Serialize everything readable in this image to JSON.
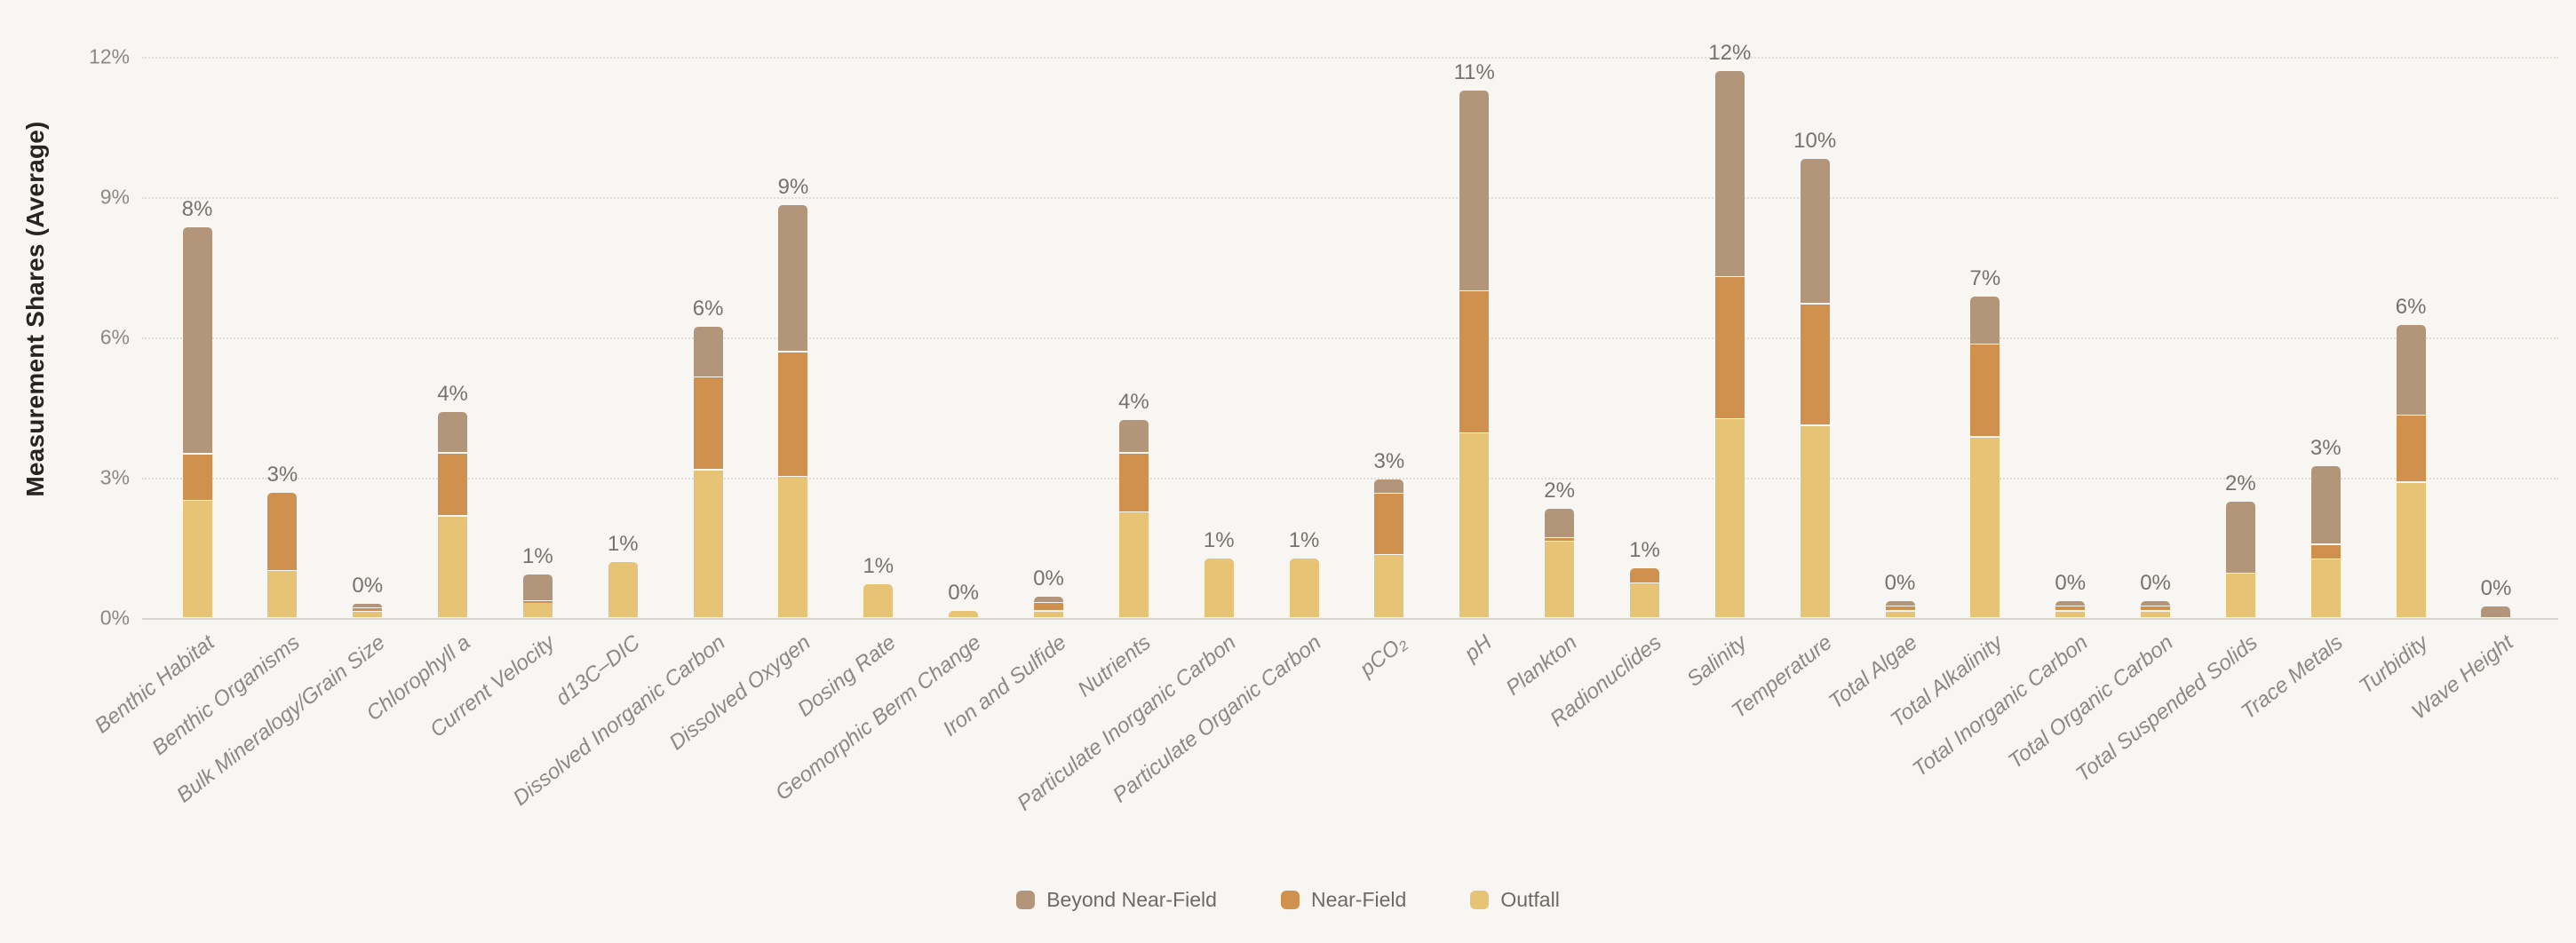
{
  "y_axis": {
    "title": "Measurement Shares (Average)",
    "tick_labels": [
      "0%",
      "3%",
      "6%",
      "9%",
      "12%"
    ]
  },
  "legend": {
    "items": [
      {
        "label": "Beyond Near-Field",
        "color": "#b39679"
      },
      {
        "label": "Near-Field",
        "color": "#d0914f"
      },
      {
        "label": "Outfall",
        "color": "#e7c376"
      }
    ]
  },
  "chart_data": {
    "type": "bar",
    "stacked": true,
    "title": "",
    "xlabel": "",
    "ylabel": "Measurement Shares (Average)",
    "ylim": [
      0,
      12.6
    ],
    "yticks_pct": [
      0,
      3,
      6,
      9,
      12
    ],
    "grid": "horizontal-dotted",
    "legend_position": "bottom-center",
    "categories": [
      "Benthic Habitat",
      "Benthic Organisms",
      "Bulk Mineralogy/Grain Size",
      "Chlorophyll a",
      "Current Velocity",
      "d13C–DIC",
      "Dissolved Inorganic Carbon",
      "Dissolved Oxygen",
      "Dosing Rate",
      "Geomorphic Berm Change",
      "Iron and Sulfide",
      "Nutrients",
      "Particulate Inorganic Carbon",
      "Particulate Organic Carbon",
      "pCO₂",
      "pH",
      "Plankton",
      "Radionuclides",
      "Salinity",
      "Temperature",
      "Total Algae",
      "Total Alkalinity",
      "Total Inorganic Carbon",
      "Total Organic Carbon",
      "Total Suspended Solids",
      "Trace Metals",
      "Turbidity",
      "Wave Height"
    ],
    "series": [
      {
        "name": "Outfall",
        "color": "#e7c376",
        "values": [
          2.5,
          1.0,
          0.13,
          2.17,
          0.34,
          1.19,
          3.16,
          3.02,
          0.72,
          0.15,
          0.14,
          2.26,
          1.28,
          1.28,
          1.34,
          3.95,
          1.63,
          0.74,
          4.25,
          4.11,
          0.14,
          3.86,
          0.14,
          0.14,
          0.95,
          1.25,
          2.89,
          0.0
        ]
      },
      {
        "name": "Near-Field",
        "color": "#d0914f",
        "values": [
          1.0,
          1.67,
          0.08,
          1.35,
          0.02,
          0.0,
          1.98,
          2.66,
          0.0,
          0.0,
          0.18,
          1.26,
          0.0,
          0.0,
          1.31,
          3.03,
          0.08,
          0.33,
          3.04,
          2.6,
          0.1,
          1.98,
          0.1,
          0.1,
          0.0,
          0.31,
          1.43,
          0.0
        ]
      },
      {
        "name": "Beyond Near-Field",
        "color": "#b39679",
        "values": [
          4.85,
          0.0,
          0.09,
          0.89,
          0.57,
          0.0,
          1.09,
          3.15,
          0.0,
          0.0,
          0.14,
          0.71,
          0.0,
          0.0,
          0.31,
          4.3,
          0.62,
          0.0,
          4.41,
          3.1,
          0.12,
          1.03,
          0.13,
          0.12,
          1.53,
          1.68,
          1.94,
          0.25
        ]
      }
    ],
    "bar_total_labels": [
      "8%",
      "3%",
      "0%",
      "4%",
      "1%",
      "1%",
      "6%",
      "9%",
      "1%",
      "0%",
      "0%",
      "4%",
      "1%",
      "1%",
      "3%",
      "11%",
      "2%",
      "1%",
      "12%",
      "10%",
      "0%",
      "7%",
      "0%",
      "0%",
      "2%",
      "3%",
      "6%",
      "0%"
    ]
  }
}
